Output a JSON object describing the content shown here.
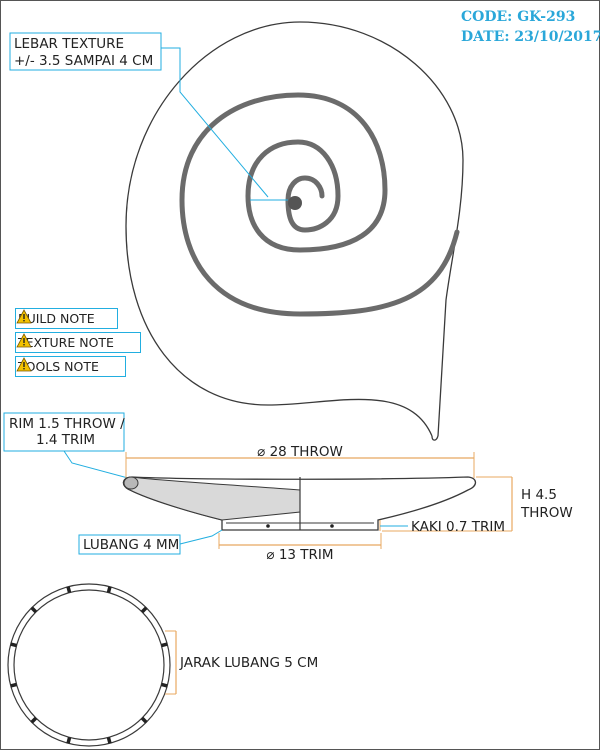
{
  "header": {
    "code": "CODE: GK-293",
    "date": "DATE: 23/10/2017"
  },
  "texture_callout": {
    "line1": "LEBAR TEXTURE",
    "line2": "+/- 3.5 SAMPAI 4 CM"
  },
  "notes": [
    {
      "label": "BUILD NOTE",
      "icon": "warning-icon"
    },
    {
      "label": "TEXTURE NOTE",
      "icon": "warning-icon"
    },
    {
      "label": "TOOLS NOTE",
      "icon": "warning-icon"
    }
  ],
  "section_view": {
    "rim_line1": "RIM 1.5 THROW /",
    "rim_line2": "1.4 TRIM",
    "diameter_throw": "⌀ 28 THROW",
    "height_line1": "H 4.5",
    "height_line2": "THROW",
    "foot": "KAKI 0.7 TRIM",
    "hole": "LUBANG 4 MM",
    "diameter_trim": "⌀ 13 TRIM"
  },
  "foot_ring": {
    "spacing": "JARAK LUBANG 5 CM",
    "hole_count": 12
  },
  "colors": {
    "line": "#3a3a3a",
    "spiral": "#6b6b6b",
    "leader": "#22aee0",
    "dimension": "#e8a860",
    "code_text": "#2aa7d9",
    "warning": "#f3c200"
  }
}
